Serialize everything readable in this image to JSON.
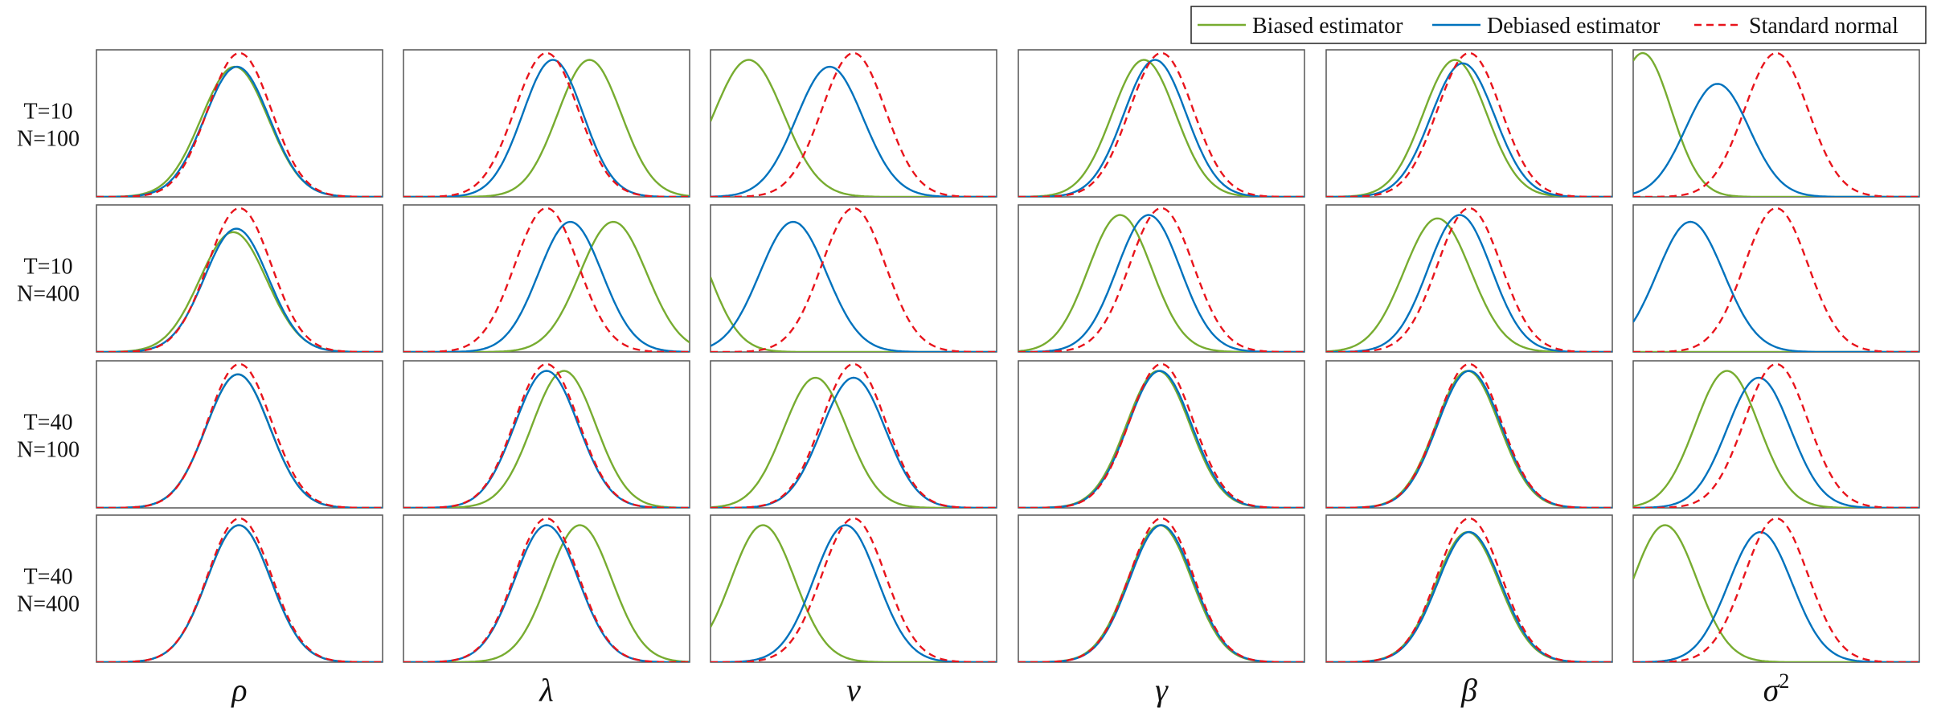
{
  "chart_data": {
    "type": "line",
    "layout": "4x6 small multiples of kernel density curves",
    "legend": {
      "placement": "top-right",
      "entries": [
        {
          "key": "biased",
          "label": "Biased estimator",
          "color": "#77ac30",
          "dash": "solid"
        },
        {
          "key": "debiased",
          "label": "Debiased estimator",
          "color": "#0072bd",
          "dash": "solid"
        },
        {
          "key": "normal",
          "label": "Standard normal",
          "color": "#e8141c",
          "dash": "dashed"
        }
      ]
    },
    "columns": [
      {
        "label": "ρ",
        "sup": ""
      },
      {
        "label": "λ",
        "sup": ""
      },
      {
        "label": "ν",
        "sup": ""
      },
      {
        "label": "γ",
        "sup": ""
      },
      {
        "label": "β",
        "sup": ""
      },
      {
        "label": "σ",
        "sup": "2"
      }
    ],
    "rows": [
      {
        "line1": "T=10",
        "line2": "N=100"
      },
      {
        "line1": "T=10",
        "line2": "N=400"
      },
      {
        "line1": "T=40",
        "line2": "N=100"
      },
      {
        "line1": "T=40",
        "line2": "N=400"
      }
    ],
    "xlim": [
      -4.5,
      4.5
    ],
    "ylim": [
      0,
      0.42
    ],
    "grid": false,
    "panels": [
      [
        {
          "biased": {
            "mu": -0.15,
            "sd": 1.05,
            "h": 0.38
          },
          "debiased": {
            "mu": -0.08,
            "sd": 1.02,
            "h": 0.38
          }
        },
        {
          "biased": {
            "mu": 1.35,
            "sd": 1.0,
            "h": 0.4
          },
          "debiased": {
            "mu": 0.2,
            "sd": 0.95,
            "h": 0.4
          }
        },
        {
          "biased": {
            "mu": -3.3,
            "sd": 1.1,
            "h": 0.4
          },
          "debiased": {
            "mu": -0.75,
            "sd": 1.05,
            "h": 0.38
          }
        },
        {
          "biased": {
            "mu": -0.55,
            "sd": 1.0,
            "h": 0.4
          },
          "debiased": {
            "mu": -0.2,
            "sd": 0.98,
            "h": 0.4
          }
        },
        {
          "biased": {
            "mu": -0.45,
            "sd": 1.0,
            "h": 0.4
          },
          "debiased": {
            "mu": -0.2,
            "sd": 1.0,
            "h": 0.39
          }
        },
        {
          "biased": {
            "mu": -4.2,
            "sd": 0.9,
            "h": 0.42
          },
          "debiased": {
            "mu": -1.85,
            "sd": 1.0,
            "h": 0.33
          }
        }
      ],
      [
        {
          "biased": {
            "mu": -0.2,
            "sd": 1.05,
            "h": 0.35
          },
          "debiased": {
            "mu": -0.1,
            "sd": 1.0,
            "h": 0.36
          }
        },
        {
          "biased": {
            "mu": 2.1,
            "sd": 1.05,
            "h": 0.38
          },
          "debiased": {
            "mu": 0.75,
            "sd": 1.0,
            "h": 0.38
          }
        },
        {
          "biased": {
            "mu": -5.6,
            "sd": 1.0,
            "h": 0.4
          },
          "debiased": {
            "mu": -1.9,
            "sd": 1.05,
            "h": 0.38
          }
        },
        {
          "biased": {
            "mu": -1.3,
            "sd": 1.0,
            "h": 0.4
          },
          "debiased": {
            "mu": -0.4,
            "sd": 1.0,
            "h": 0.4
          }
        },
        {
          "biased": {
            "mu": -1.0,
            "sd": 1.05,
            "h": 0.39
          },
          "debiased": {
            "mu": -0.3,
            "sd": 1.0,
            "h": 0.4
          }
        },
        {
          "biased": {
            "mu": -9.0,
            "sd": 1.0,
            "h": 0.4
          },
          "debiased": {
            "mu": -2.7,
            "sd": 1.05,
            "h": 0.38
          }
        }
      ],
      [
        {
          "biased": {
            "mu": -0.05,
            "sd": 1.0,
            "h": 0.39
          },
          "debiased": {
            "mu": -0.05,
            "sd": 1.0,
            "h": 0.39
          }
        },
        {
          "biased": {
            "mu": 0.55,
            "sd": 1.0,
            "h": 0.4
          },
          "debiased": {
            "mu": 0.0,
            "sd": 1.0,
            "h": 0.4
          }
        },
        {
          "biased": {
            "mu": -1.2,
            "sd": 1.0,
            "h": 0.38
          },
          "debiased": {
            "mu": 0.0,
            "sd": 1.0,
            "h": 0.38
          }
        },
        {
          "biased": {
            "mu": -0.1,
            "sd": 1.0,
            "h": 0.4
          },
          "debiased": {
            "mu": -0.05,
            "sd": 1.0,
            "h": 0.4
          }
        },
        {
          "biased": {
            "mu": -0.05,
            "sd": 1.0,
            "h": 0.4
          },
          "debiased": {
            "mu": 0.0,
            "sd": 1.0,
            "h": 0.4
          }
        },
        {
          "biased": {
            "mu": -1.55,
            "sd": 1.0,
            "h": 0.4
          },
          "debiased": {
            "mu": -0.55,
            "sd": 1.0,
            "h": 0.38
          }
        }
      ],
      [
        {
          "biased": {
            "mu": -0.02,
            "sd": 1.0,
            "h": 0.4
          },
          "debiased": {
            "mu": -0.02,
            "sd": 1.0,
            "h": 0.4
          }
        },
        {
          "biased": {
            "mu": 1.05,
            "sd": 1.0,
            "h": 0.4
          },
          "debiased": {
            "mu": 0.0,
            "sd": 1.0,
            "h": 0.4
          }
        },
        {
          "biased": {
            "mu": -2.85,
            "sd": 1.0,
            "h": 0.4
          },
          "debiased": {
            "mu": -0.25,
            "sd": 1.0,
            "h": 0.4
          }
        },
        {
          "biased": {
            "mu": -0.05,
            "sd": 1.0,
            "h": 0.4
          },
          "debiased": {
            "mu": 0.0,
            "sd": 1.0,
            "h": 0.4
          }
        },
        {
          "biased": {
            "mu": -0.05,
            "sd": 1.0,
            "h": 0.38
          },
          "debiased": {
            "mu": 0.0,
            "sd": 1.0,
            "h": 0.38
          }
        },
        {
          "biased": {
            "mu": -3.5,
            "sd": 1.0,
            "h": 0.4
          },
          "debiased": {
            "mu": -0.5,
            "sd": 1.0,
            "h": 0.38
          }
        }
      ]
    ],
    "normal": {
      "mu": 0.0,
      "sd": 1.0,
      "h": 0.42
    }
  }
}
